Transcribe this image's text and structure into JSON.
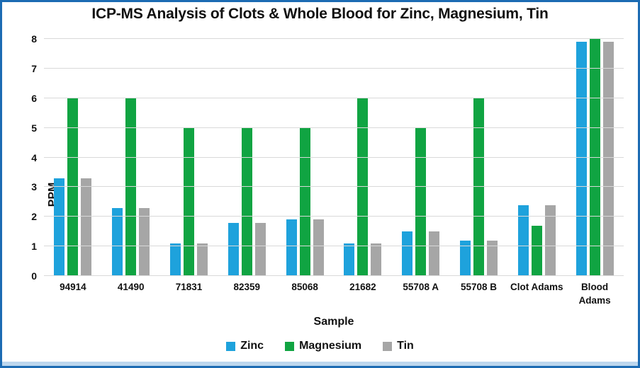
{
  "window": {
    "border_color": "#1c6bb3",
    "bottom_strip_color": "#bdd7ee",
    "background": "#ffffff"
  },
  "chart_data": {
    "type": "bar",
    "title": "ICP-MS Analysis of Clots & Whole Blood for Zinc, Magnesium, Tin",
    "xlabel": "Sample",
    "ylabel": "PPM",
    "ylim": [
      0,
      8
    ],
    "yticks": [
      0,
      1,
      2,
      3,
      4,
      5,
      6,
      7,
      8
    ],
    "grid": true,
    "gridline_color": "#d9d9d9",
    "text_color": "#111111",
    "legend_position": "bottom",
    "categories": [
      "94914",
      "41490",
      "71831",
      "82359",
      "85068",
      "21682",
      "55708 A",
      "55708 B",
      "Clot Adams",
      "Blood\nAdams"
    ],
    "series": [
      {
        "name": "Zinc",
        "color": "#1ea2dc",
        "values": [
          3.3,
          2.3,
          1.1,
          1.8,
          1.9,
          1.1,
          1.5,
          1.2,
          2.4,
          7.9
        ]
      },
      {
        "name": "Magnesium",
        "color": "#10a442",
        "values": [
          6.0,
          6.0,
          5.0,
          5.0,
          5.0,
          6.0,
          5.0,
          6.0,
          1.7,
          8.0
        ]
      },
      {
        "name": "Tin",
        "color": "#a6a6a6",
        "values": [
          3.3,
          2.3,
          1.1,
          1.8,
          1.9,
          1.1,
          1.5,
          1.2,
          2.4,
          7.9
        ]
      }
    ]
  }
}
